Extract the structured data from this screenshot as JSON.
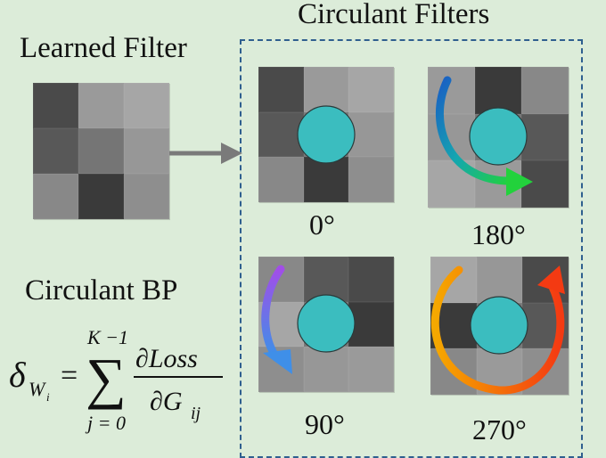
{
  "labels": {
    "circulant_filters": "Circulant Filters",
    "learned_filter": "Learned Filter",
    "circulant_bp": "Circulant BP"
  },
  "angles": {
    "a0": "0°",
    "a180": "180°",
    "a90": "90°",
    "a270": "270°"
  },
  "formula": {
    "lhs_delta": "δ",
    "lhs_sub": "W",
    "lhs_subsub": "i",
    "equals": "=",
    "sum": "∑",
    "upper": "K −1",
    "lower": "j = 0",
    "numerator": "∂Loss",
    "denominator_main": "∂G",
    "denominator_sub": "ij"
  },
  "colors": {
    "background": "#dcecd9",
    "dashed_box": "#2f5f8f",
    "center_dot": "#3bbdbf",
    "arrow": "#7a7a7a"
  },
  "grids": {
    "learned": [
      "#4a4a4a",
      "#9a9a9a",
      "#a6a6a6",
      "#585858",
      "#757575",
      "#979797",
      "#888888",
      "#3a3a3a",
      "#8e8e8e"
    ],
    "r0": [
      "#4a4a4a",
      "#9a9a9a",
      "#a6a6a6",
      "#585858",
      "#757575",
      "#979797",
      "#888888",
      "#3a3a3a",
      "#8e8e8e"
    ],
    "r180": [
      "#9a9a9a",
      "#3a3a3a",
      "#888888",
      "#979797",
      "#757575",
      "#585858",
      "#a6a6a6",
      "#9a9a9a",
      "#4a4a4a"
    ],
    "r90": [
      "#888888",
      "#585858",
      "#4a4a4a",
      "#a6a6a6",
      "#757575",
      "#3a3a3a",
      "#8e8e8e",
      "#979797",
      "#9a9a9a"
    ],
    "r270": [
      "#a6a6a6",
      "#979797",
      "#4a4a4a",
      "#3a3a3a",
      "#757575",
      "#585858",
      "#888888",
      "#9a9a9a",
      "#8e8e8e"
    ]
  }
}
